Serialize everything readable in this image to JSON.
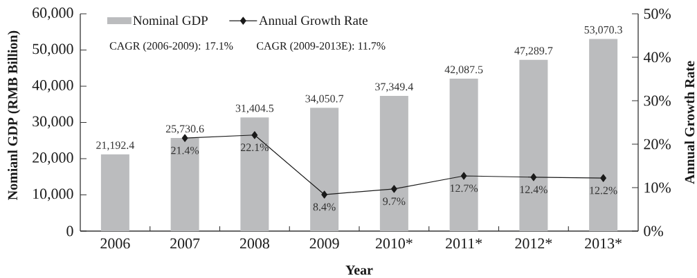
{
  "chart_data": {
    "type": "bar",
    "xlabel": "Year",
    "ylabel": "Nomianl GDP (RMB Billion)",
    "y2label": "Annual Growth Rate",
    "categories": [
      "2006",
      "2007",
      "2008",
      "2009",
      "2010*",
      "2011*",
      "2012*",
      "2013*"
    ],
    "series": [
      {
        "name": "Nominal GDP",
        "color": "#bbbcbe",
        "values": [
          21192.4,
          25730.6,
          31404.5,
          34050.7,
          37349.4,
          42087.5,
          47289.7,
          53070.3
        ],
        "value_labels": [
          "21,192.4",
          "25,730.6",
          "31,404.5",
          "34,050.7",
          "37,349.4",
          "42,087.5",
          "47,289.7",
          "53,070.3"
        ]
      },
      {
        "name": "Annual Growth Rate",
        "type": "line",
        "axis": "y2",
        "color": "#1a1a1a",
        "values": [
          null,
          21.4,
          22.1,
          8.4,
          9.7,
          12.7,
          12.4,
          12.2
        ],
        "value_labels": [
          null,
          "21.4%",
          "22.1%",
          "8.4%",
          "9.7%",
          "12.7%",
          "12.4%",
          "12.2%"
        ]
      }
    ],
    "ylim": [
      0,
      60000
    ],
    "yticks": [
      0,
      {
        "value": 10000,
        "label": "10,000"
      },
      {
        "value": 20000,
        "label": "20,000"
      },
      {
        "value": 30000,
        "label": "30,000"
      },
      {
        "value": 40000,
        "label": "40,000"
      },
      {
        "value": 50000,
        "label": "50,000"
      },
      {
        "value": 60000,
        "label": "60,000"
      }
    ],
    "y2lim": [
      0,
      50
    ],
    "y2ticks": [
      {
        "value": 0,
        "label": "0%"
      },
      {
        "value": 10,
        "label": "10%"
      },
      {
        "value": 20,
        "label": "20%"
      },
      {
        "value": 30,
        "label": "30%"
      },
      {
        "value": 40,
        "label": "40%"
      },
      {
        "value": 50,
        "label": "50%"
      }
    ],
    "legend": "top left",
    "marker": "diamond",
    "annotations": [
      "CAGR (2006-2009): 17.1%",
      "CAGR (2009-2013E): 11.7%"
    ]
  }
}
